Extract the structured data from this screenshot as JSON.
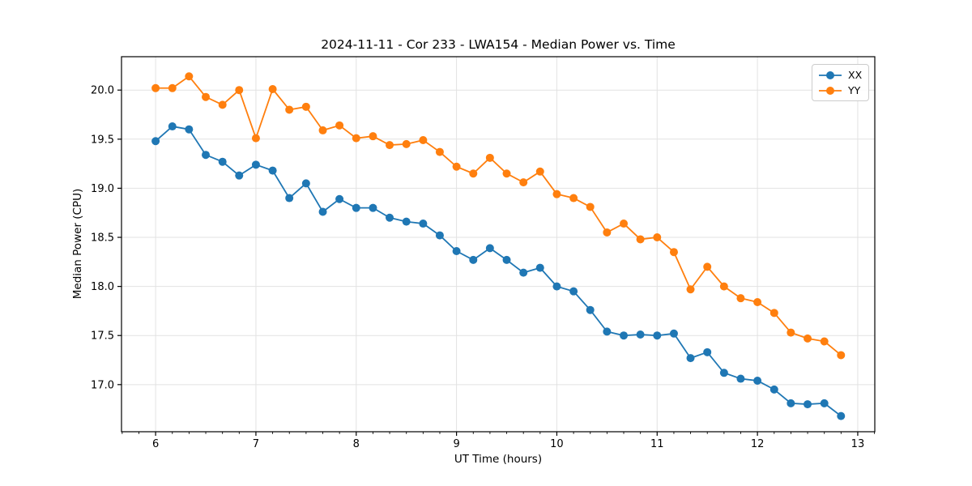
{
  "chart_data": {
    "type": "line",
    "title": "2024-11-11 - Cor 233 - LWA154 - Median Power vs. Time",
    "xlabel": "UT Time (hours)",
    "ylabel": "Median Power (CPU)",
    "xlim": [
      5.66,
      13.17
    ],
    "ylim": [
      16.52,
      20.34
    ],
    "xticks": [
      6,
      7,
      8,
      9,
      10,
      11,
      12,
      13
    ],
    "xtick_labels": [
      "6",
      "7",
      "8",
      "9",
      "10",
      "11",
      "12",
      "13"
    ],
    "yticks": [
      17.0,
      17.5,
      18.0,
      18.5,
      19.0,
      19.5,
      20.0
    ],
    "ytick_labels": [
      "17.0",
      "17.5",
      "18.0",
      "18.5",
      "19.0",
      "19.5",
      "20.0"
    ],
    "x_minor_tick_interval": 0.16667,
    "grid": true,
    "grid_color": "#e2e2e2",
    "spine_color": "#000000",
    "legend_position": "upper right",
    "marker": "o",
    "x": [
      6.0,
      6.167,
      6.333,
      6.5,
      6.667,
      6.833,
      7.0,
      7.167,
      7.333,
      7.5,
      7.667,
      7.833,
      8.0,
      8.167,
      8.333,
      8.5,
      8.667,
      8.833,
      9.0,
      9.167,
      9.333,
      9.5,
      9.667,
      9.833,
      10.0,
      10.167,
      10.333,
      10.5,
      10.667,
      10.833,
      11.0,
      11.167,
      11.333,
      11.5,
      11.667,
      11.833,
      12.0,
      12.167,
      12.333,
      12.5,
      12.667,
      12.833
    ],
    "series": [
      {
        "name": "XX",
        "color": "#1f77b4",
        "values": [
          19.48,
          19.63,
          19.6,
          19.34,
          19.27,
          19.13,
          19.24,
          19.18,
          18.9,
          19.05,
          18.76,
          18.89,
          18.8,
          18.8,
          18.7,
          18.66,
          18.64,
          18.52,
          18.36,
          18.27,
          18.39,
          18.27,
          18.14,
          18.19,
          18.0,
          17.95,
          17.76,
          17.54,
          17.5,
          17.51,
          17.5,
          17.52,
          17.27,
          17.33,
          17.12,
          17.06,
          17.04,
          16.95,
          16.81,
          16.8,
          16.81,
          16.68
        ]
      },
      {
        "name": "YY",
        "color": "#ff7f0e",
        "values": [
          20.02,
          20.02,
          20.14,
          19.93,
          19.85,
          20.0,
          19.51,
          20.01,
          19.8,
          19.83,
          19.59,
          19.64,
          19.51,
          19.53,
          19.44,
          19.45,
          19.49,
          19.37,
          19.22,
          19.15,
          19.31,
          19.15,
          19.06,
          19.17,
          18.94,
          18.9,
          18.81,
          18.55,
          18.64,
          18.48,
          18.5,
          18.35,
          17.97,
          18.2,
          18.0,
          17.88,
          17.84,
          17.73,
          17.53,
          17.47,
          17.44,
          17.3
        ]
      }
    ]
  }
}
